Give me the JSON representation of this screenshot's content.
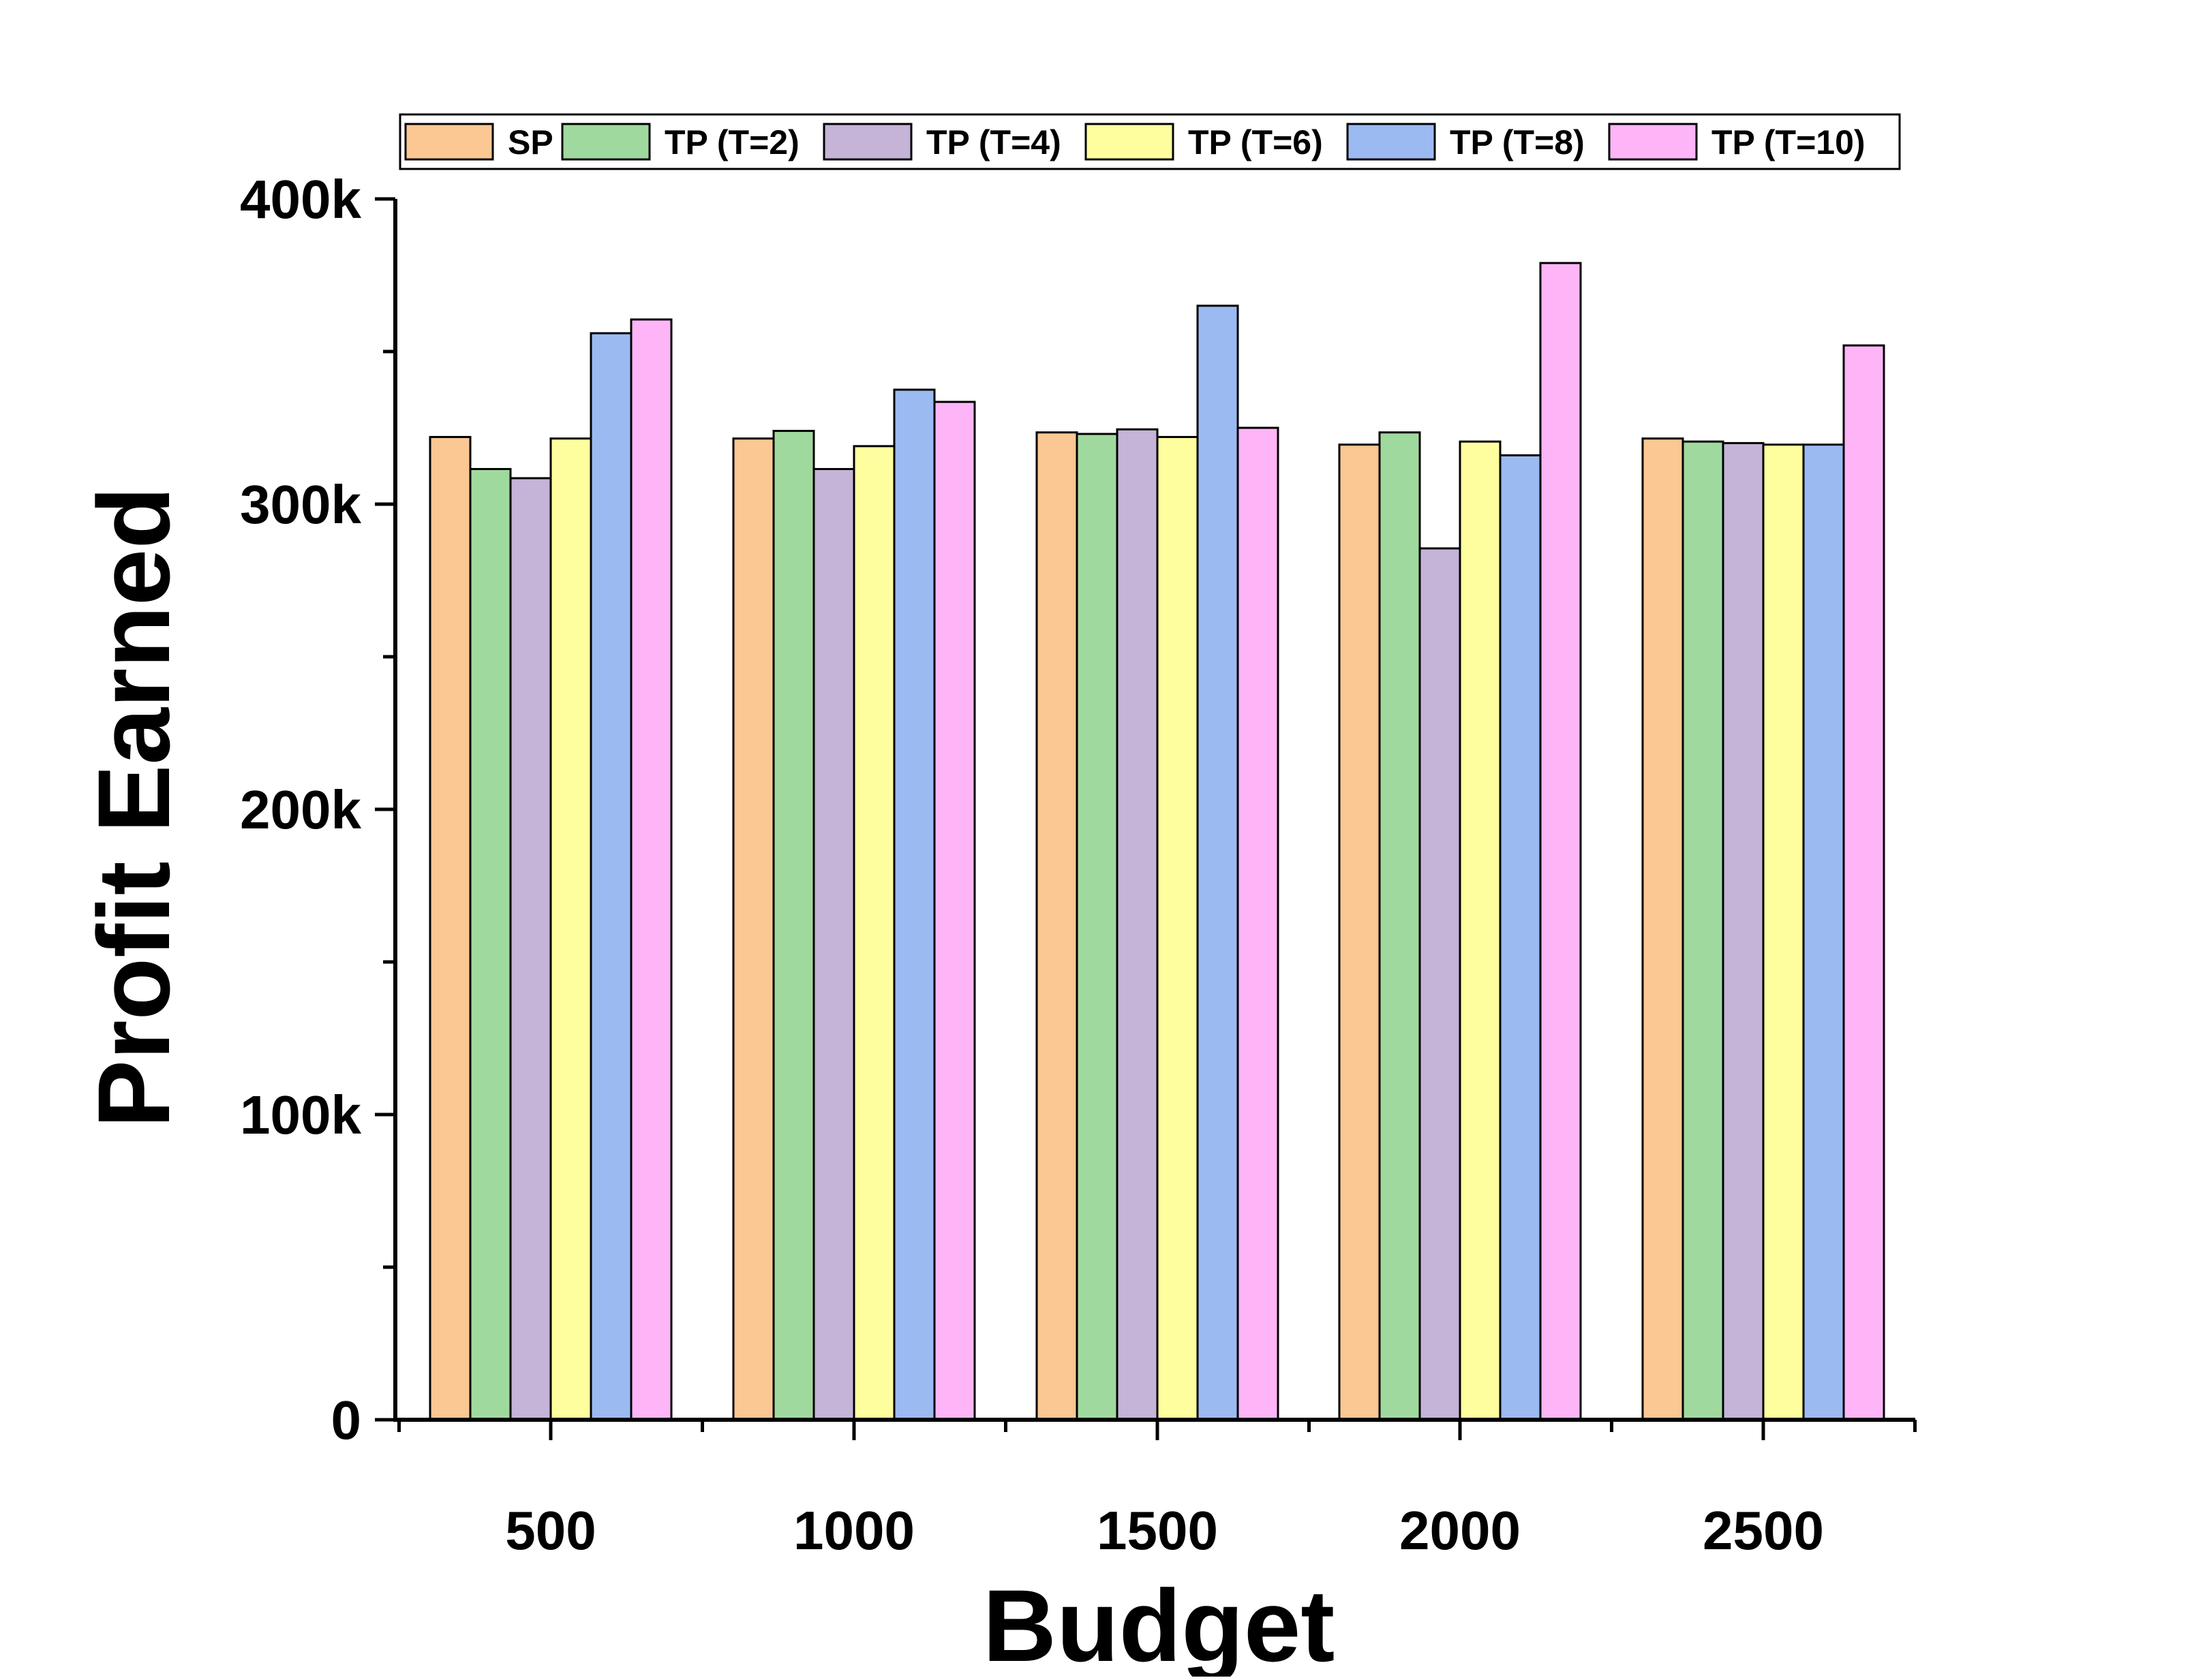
{
  "chart_data": {
    "type": "bar",
    "xlabel": "Budget",
    "ylabel": "Profit Earned",
    "categories": [
      "500",
      "1000",
      "1500",
      "2000",
      "2500"
    ],
    "ylim": [
      0,
      400000
    ],
    "yticks": [
      {
        "value": 0,
        "label": "0"
      },
      {
        "value": 100000,
        "label": "100k"
      },
      {
        "value": 200000,
        "label": "200k"
      },
      {
        "value": 300000,
        "label": "300k"
      },
      {
        "value": 400000,
        "label": "400k"
      }
    ],
    "legend_position": "top",
    "grid": false,
    "series": [
      {
        "name": "SP",
        "color": "#FBC793",
        "values": [
          322000,
          321500,
          323500,
          319500,
          321500
        ]
      },
      {
        "name": "TP (T=2)",
        "color": "#A0D99E",
        "values": [
          311500,
          324000,
          323000,
          323500,
          320500
        ]
      },
      {
        "name": "TP (T=4)",
        "color": "#C5B3D8",
        "values": [
          308500,
          311500,
          324500,
          285500,
          320000
        ]
      },
      {
        "name": "TP (T=6)",
        "color": "#FFFE9E",
        "values": [
          321500,
          319000,
          322000,
          320500,
          319500
        ]
      },
      {
        "name": "TP (T=8)",
        "color": "#9BBAF2",
        "values": [
          356000,
          337500,
          365000,
          316000,
          319500
        ]
      },
      {
        "name": "TP (T=10)",
        "color": "#FDB5F7",
        "values": [
          360500,
          333500,
          325000,
          379000,
          352000
        ]
      }
    ]
  }
}
